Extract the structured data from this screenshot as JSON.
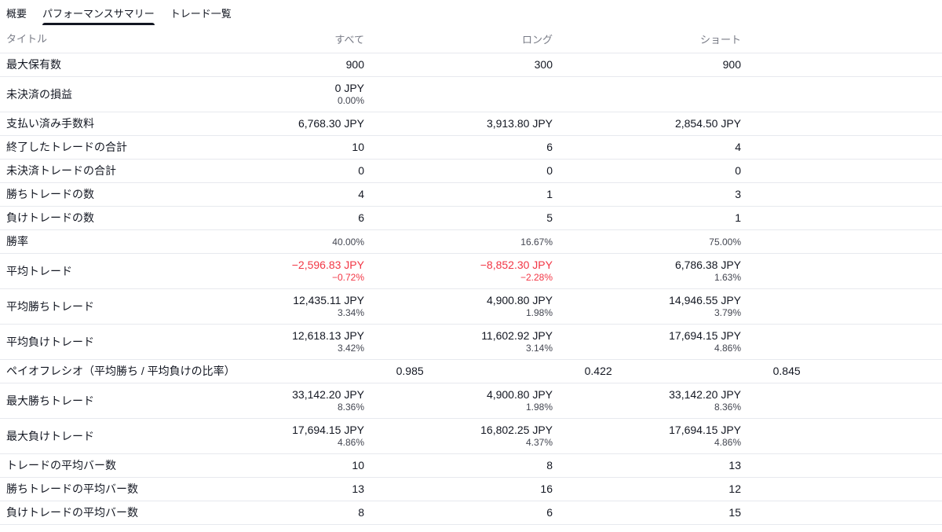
{
  "tabs": [
    {
      "label": "概要",
      "active": false
    },
    {
      "label": "パフォーマンスサマリー",
      "active": true
    },
    {
      "label": "トレード一覧",
      "active": false
    }
  ],
  "table": {
    "headers": {
      "title": "タイトル",
      "all": "すべて",
      "long": "ロング",
      "short": "ショート"
    },
    "rows": [
      {
        "title": "最大保有数",
        "all": {
          "value": "900"
        },
        "long": {
          "value": "300"
        },
        "short": {
          "value": "900"
        }
      },
      {
        "title": "未決済の損益",
        "all": {
          "value": "0 JPY",
          "percent": "0.00%"
        },
        "long": {},
        "short": {}
      },
      {
        "title": "支払い済み手数料",
        "all": {
          "value": "6,768.30 JPY"
        },
        "long": {
          "value": "3,913.80 JPY"
        },
        "short": {
          "value": "2,854.50 JPY"
        }
      },
      {
        "title": "終了したトレードの合計",
        "all": {
          "value": "10"
        },
        "long": {
          "value": "6"
        },
        "short": {
          "value": "4"
        }
      },
      {
        "title": "未決済トレードの合計",
        "all": {
          "value": "0"
        },
        "long": {
          "value": "0"
        },
        "short": {
          "value": "0"
        }
      },
      {
        "title": "勝ちトレードの数",
        "all": {
          "value": "4"
        },
        "long": {
          "value": "1"
        },
        "short": {
          "value": "3"
        }
      },
      {
        "title": "負けトレードの数",
        "all": {
          "value": "6"
        },
        "long": {
          "value": "5"
        },
        "short": {
          "value": "1"
        }
      },
      {
        "title": "勝率",
        "small": true,
        "all": {
          "value": "40.00%"
        },
        "long": {
          "value": "16.67%"
        },
        "short": {
          "value": "75.00%"
        }
      },
      {
        "title": "平均トレード",
        "all": {
          "value": "−2,596.83 JPY",
          "percent": "−0.72%",
          "negative": true
        },
        "long": {
          "value": "−8,852.30 JPY",
          "percent": "−2.28%",
          "negative": true
        },
        "short": {
          "value": "6,786.38 JPY",
          "percent": "1.63%"
        }
      },
      {
        "title": "平均勝ちトレード",
        "all": {
          "value": "12,435.11 JPY",
          "percent": "3.34%"
        },
        "long": {
          "value": "4,900.80 JPY",
          "percent": "1.98%"
        },
        "short": {
          "value": "14,946.55 JPY",
          "percent": "3.79%"
        }
      },
      {
        "title": "平均負けトレード",
        "all": {
          "value": "12,618.13 JPY",
          "percent": "3.42%"
        },
        "long": {
          "value": "11,602.92 JPY",
          "percent": "3.14%"
        },
        "short": {
          "value": "17,694.15 JPY",
          "percent": "4.86%"
        }
      },
      {
        "title": "ペイオフレシオ（平均勝ち / 平均負けの比率）",
        "all": {
          "value": "0.985"
        },
        "long": {
          "value": "0.422"
        },
        "short": {
          "value": "0.845"
        }
      },
      {
        "title": "最大勝ちトレード",
        "all": {
          "value": "33,142.20 JPY",
          "percent": "8.36%"
        },
        "long": {
          "value": "4,900.80 JPY",
          "percent": "1.98%"
        },
        "short": {
          "value": "33,142.20 JPY",
          "percent": "8.36%"
        }
      },
      {
        "title": "最大負けトレード",
        "all": {
          "value": "17,694.15 JPY",
          "percent": "4.86%"
        },
        "long": {
          "value": "16,802.25 JPY",
          "percent": "4.37%"
        },
        "short": {
          "value": "17,694.15 JPY",
          "percent": "4.86%"
        }
      },
      {
        "title": "トレードの平均バー数",
        "all": {
          "value": "10"
        },
        "long": {
          "value": "8"
        },
        "short": {
          "value": "13"
        }
      },
      {
        "title": "勝ちトレードの平均バー数",
        "all": {
          "value": "13"
        },
        "long": {
          "value": "16"
        },
        "short": {
          "value": "12"
        }
      },
      {
        "title": "負けトレードの平均バー数",
        "all": {
          "value": "8"
        },
        "long": {
          "value": "6"
        },
        "short": {
          "value": "15"
        }
      }
    ]
  },
  "colors": {
    "text": "#131722",
    "muted": "#787b86",
    "negative": "#f23645",
    "row_border": "#e7e9ee",
    "active_tab_underline": "#131722"
  }
}
